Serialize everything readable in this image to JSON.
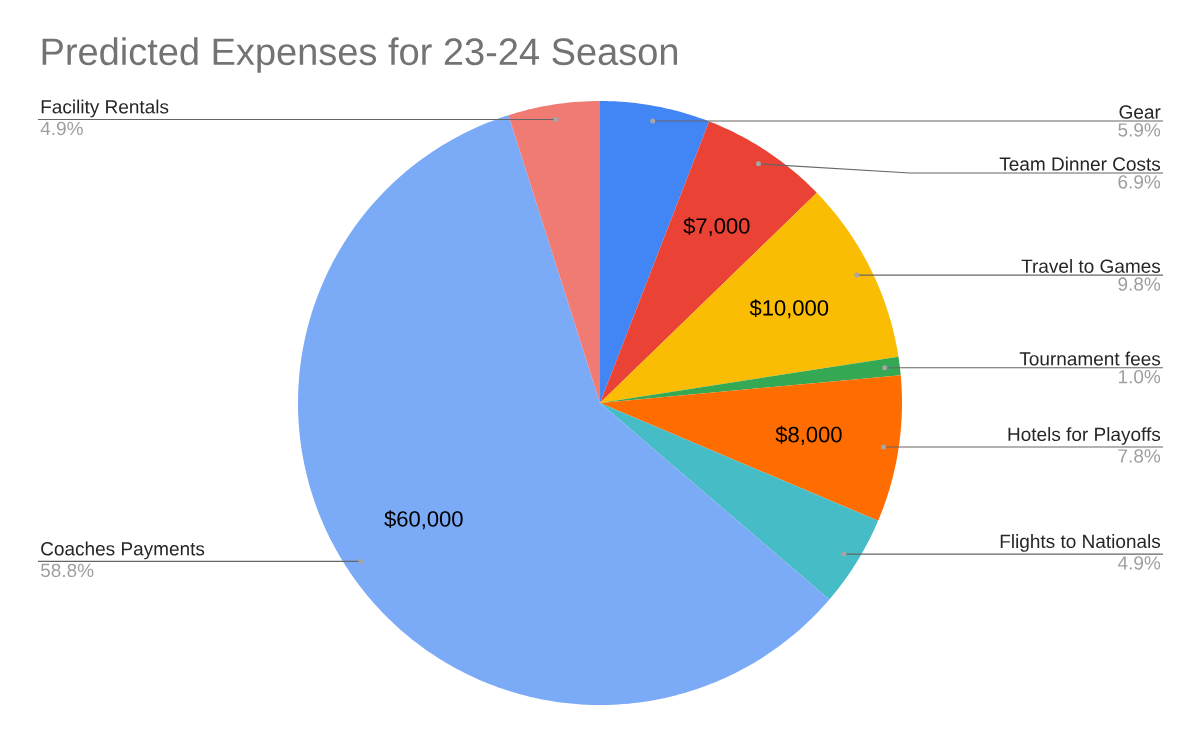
{
  "chart_data": {
    "type": "pie",
    "title": "Predicted Expenses for 23-24 Season",
    "categories": [
      "Gear",
      "Team Dinner Costs",
      "Travel to Games",
      "Tournament fees",
      "Hotels for Playoffs",
      "Flights to Nationals",
      "Coaches Payments",
      "Facility Rentals"
    ],
    "values": [
      6000,
      7000,
      10000,
      1000,
      8000,
      5000,
      60000,
      5000
    ],
    "colors": [
      "#4285f4",
      "#ea4335",
      "#fbbc04",
      "#34a853",
      "#ff6d01",
      "#46bdc6",
      "#7baaf7",
      "#f07b72"
    ],
    "value_labels": [
      null,
      "$7,000",
      "$10,000",
      null,
      "$8,000",
      null,
      "$60,000",
      null
    ],
    "annotations": [
      {
        "text": "5.9%",
        "x": "Gear"
      },
      {
        "text": "6.9%",
        "x": "Team Dinner Costs"
      },
      {
        "text": "9.8%",
        "x": "Travel to Games"
      },
      {
        "text": "1.0%",
        "x": "Tournament fees"
      },
      {
        "text": "7.8%",
        "x": "Hotels for Playoffs"
      },
      {
        "text": "4.9%",
        "x": "Flights to Nationals"
      },
      {
        "text": "58.8%",
        "x": "Coaches Payments"
      },
      {
        "text": "4.9%",
        "x": "Facility Rentals"
      }
    ],
    "legend": false
  }
}
